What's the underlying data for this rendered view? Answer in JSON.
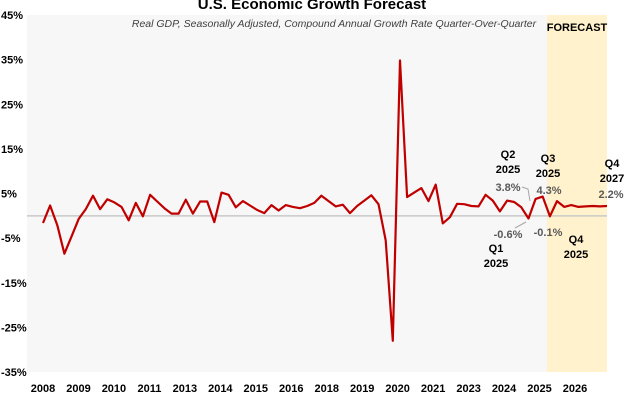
{
  "chart_data": {
    "type": "line",
    "title": "U.S. Economic Growth Forecast",
    "subtitle": "Real GDP, Seasonally Adjusted, Compound Annual Growth Rate Quarter-Over-Quarter",
    "forecast_label": "FORECAST",
    "ylim": [
      -35,
      45
    ],
    "yticks": [
      "45%",
      "35%",
      "25%",
      "15%",
      "5%",
      "-5%",
      "-15%",
      "-25%",
      "-35%"
    ],
    "ytick_values": [
      45,
      35,
      25,
      15,
      5,
      -5,
      -15,
      -25,
      -35
    ],
    "xtick_labels": [
      "2008",
      "2009",
      "2010",
      "2011",
      "2013",
      "2014",
      "2015",
      "2016",
      "2018",
      "2019",
      "2020",
      "2021",
      "2023",
      "2024",
      "2025",
      "2026"
    ],
    "grid": false,
    "line_color": "#c00000",
    "forecast_band_color": "#fff2cc",
    "plot_bg_color": "#f7f7f7",
    "x": [
      "2008 Q1",
      "2008 Q2",
      "2008 Q3",
      "2008 Q4",
      "2009 Q1",
      "2009 Q2",
      "2009 Q3",
      "2009 Q4",
      "2010 Q1",
      "2010 Q2",
      "2010 Q3",
      "2010 Q4",
      "2011 Q1",
      "2011 Q2",
      "2011 Q3",
      "2011 Q4",
      "2012 Q1",
      "2012 Q2",
      "2012 Q3",
      "2012 Q4",
      "2013 Q1",
      "2013 Q2",
      "2013 Q3",
      "2013 Q4",
      "2014 Q1",
      "2014 Q2",
      "2014 Q3",
      "2014 Q4",
      "2015 Q1",
      "2015 Q2",
      "2015 Q3",
      "2015 Q4",
      "2016 Q1",
      "2016 Q2",
      "2016 Q3",
      "2016 Q4",
      "2017 Q1",
      "2017 Q2",
      "2017 Q3",
      "2017 Q4",
      "2018 Q1",
      "2018 Q2",
      "2018 Q3",
      "2018 Q4",
      "2019 Q1",
      "2019 Q2",
      "2019 Q3",
      "2019 Q4",
      "2020 Q1",
      "2020 Q2",
      "2020 Q3",
      "2020 Q4",
      "2021 Q1",
      "2021 Q2",
      "2021 Q3",
      "2021 Q4",
      "2022 Q1",
      "2022 Q2",
      "2022 Q3",
      "2022 Q4",
      "2023 Q1",
      "2023 Q2",
      "2023 Q3",
      "2023 Q4",
      "2024 Q1",
      "2024 Q2",
      "2024 Q3",
      "2024 Q4",
      "2025 Q1",
      "2025 Q2",
      "2025 Q3",
      "2025 Q4",
      "2026 Q1",
      "2026 Q2",
      "2026 Q3",
      "2026 Q4",
      "2027 Q1",
      "2027 Q2",
      "2027 Q3",
      "2027 Q4"
    ],
    "values": [
      -1.6,
      2.3,
      -2.1,
      -8.5,
      -4.6,
      -0.7,
      1.5,
      4.5,
      1.5,
      3.7,
      3.0,
      2.0,
      -1.0,
      2.9,
      -0.1,
      4.7,
      3.2,
      1.7,
      0.5,
      0.5,
      3.6,
      0.5,
      3.2,
      3.2,
      -1.4,
      5.2,
      4.7,
      1.9,
      3.3,
      2.3,
      1.3,
      0.6,
      2.4,
      1.2,
      2.4,
      2.0,
      1.7,
      2.2,
      2.9,
      4.5,
      3.3,
      2.1,
      2.5,
      0.6,
      2.2,
      3.4,
      4.6,
      2.6,
      -5.5,
      -28.0,
      34.8,
      4.2,
      5.2,
      6.2,
      3.3,
      7.0,
      -1.7,
      -0.3,
      2.7,
      2.6,
      2.2,
      2.1,
      4.7,
      3.4,
      1.0,
      3.4,
      3.1,
      1.9,
      -0.6,
      3.8,
      4.3,
      -0.1,
      3.3,
      2.0,
      2.4,
      2.0,
      2.1,
      2.2,
      2.1,
      2.2
    ],
    "forecast_start": "2025 Q4",
    "annotations": [
      {
        "period": "Q1",
        "year": "2025",
        "value": "-0.6%"
      },
      {
        "period": "Q2",
        "year": "2025",
        "value": "3.8%"
      },
      {
        "period": "Q3",
        "year": "2025",
        "value": "4.3%"
      },
      {
        "period": "Q4",
        "year": "2025",
        "value": "-0.1%"
      },
      {
        "period": "Q4",
        "year": "2027",
        "value": "2.2%"
      }
    ]
  }
}
